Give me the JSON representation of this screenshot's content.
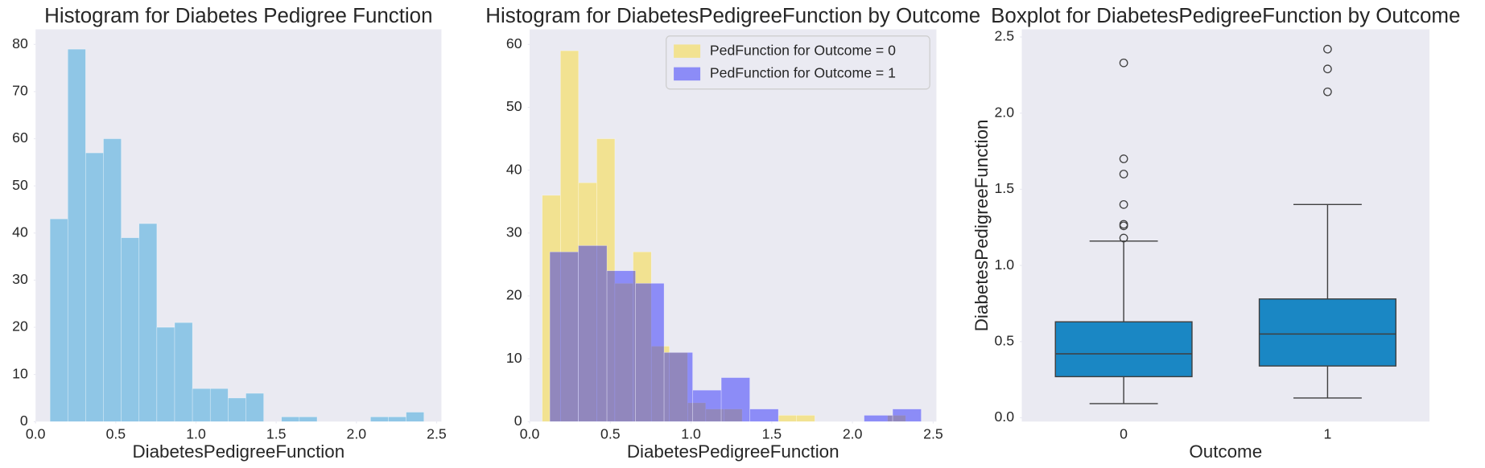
{
  "chart_data": [
    {
      "type": "histogram",
      "title": "Histogram for Diabetes Pedigree Function",
      "xlabel": "DiabetesPedigreeFunction",
      "color": "#8fc6e6",
      "bins": [
        0.09,
        0.201,
        0.312,
        0.423,
        0.534,
        0.645,
        0.756,
        0.867,
        0.978,
        1.089,
        1.2,
        1.311,
        1.422,
        1.533,
        1.644,
        1.755,
        1.866,
        1.977,
        2.088,
        2.199,
        2.31,
        2.421
      ],
      "values": [
        43,
        79,
        57,
        60,
        39,
        42,
        20,
        21,
        7,
        7,
        5,
        6,
        0,
        1,
        1,
        0,
        0,
        0,
        1,
        1,
        2
      ],
      "xlim": [
        0,
        2.53
      ],
      "xticks": [
        {
          "value": 0,
          "label": "0.0"
        },
        0.5,
        {
          "value": 1,
          "label": "1.0"
        },
        1.5,
        {
          "value": 2,
          "label": "2.0"
        },
        2.5
      ],
      "ylim": [
        0,
        83.2
      ],
      "yticks": [
        0,
        10,
        20,
        30,
        40,
        50,
        60,
        70,
        80
      ],
      "grid": false
    },
    {
      "type": "histogram",
      "title": "Histogram for DiabetesPedigreeFunction by Outcome",
      "xlabel": "DiabetesPedigreeFunction",
      "alpha": 0.4,
      "legend": "upper right",
      "series": [
        {
          "name": "PedFunction for Outcome = 0",
          "color": "#ffd700",
          "bins": [
            0.078,
            0.191,
            0.303,
            0.416,
            0.528,
            0.641,
            0.754,
            0.866,
            0.979,
            1.091,
            1.204,
            1.317,
            1.429,
            1.542,
            1.654,
            1.767,
            1.88,
            1.992,
            2.105,
            2.217,
            2.33
          ],
          "values": [
            36,
            59,
            38,
            45,
            22,
            27,
            12,
            11,
            3,
            2,
            2,
            0,
            0,
            1,
            1,
            0,
            0,
            0,
            0,
            1
          ]
        },
        {
          "name": "PedFunction for Outcome = 1",
          "color": "#0000ff",
          "bins": [
            0.125,
            0.302,
            0.479,
            0.656,
            0.833,
            1.01,
            1.187,
            1.364,
            1.541,
            1.718,
            1.895,
            2.072,
            2.249,
            2.426
          ],
          "values": [
            27,
            28,
            24,
            22,
            11,
            5,
            7,
            2,
            0,
            0,
            0,
            1,
            2
          ]
        }
      ],
      "xlim": [
        0,
        2.52
      ],
      "xticks": [
        {
          "value": 0,
          "label": "0.0"
        },
        0.5,
        {
          "value": 1,
          "label": "1.0"
        },
        1.5,
        {
          "value": 2,
          "label": "2.0"
        },
        2.5
      ],
      "ylim": [
        0,
        62.4
      ],
      "yticks": [
        0,
        10,
        20,
        30,
        40,
        50,
        60
      ],
      "grid": false
    },
    {
      "type": "box",
      "title": "Boxplot for DiabetesPedigreeFunction by Outcome",
      "xlabel": "Outcome",
      "ylabel": "DiabetesPedigreeFunction",
      "color": "#1a87c4",
      "categories": [
        "0",
        "1"
      ],
      "boxes": [
        {
          "whislo": 0.093,
          "q1": 0.27,
          "median": 0.42,
          "q3": 0.63,
          "whishi": 1.16,
          "fliers": [
            1.18,
            1.26,
            1.27,
            1.4,
            1.6,
            1.7,
            2.33
          ]
        },
        {
          "whislo": 0.13,
          "q1": 0.34,
          "median": 0.55,
          "q3": 0.78,
          "whishi": 1.4,
          "fliers": [
            2.14,
            2.29,
            2.42
          ]
        }
      ],
      "ylim": [
        -0.025,
        2.55
      ],
      "yticks": [
        {
          "value": 0,
          "label": "0.0"
        },
        0.5,
        {
          "value": 1,
          "label": "1.0"
        },
        1.5,
        {
          "value": 2,
          "label": "2.0"
        },
        2.5
      ],
      "grid": false
    }
  ]
}
